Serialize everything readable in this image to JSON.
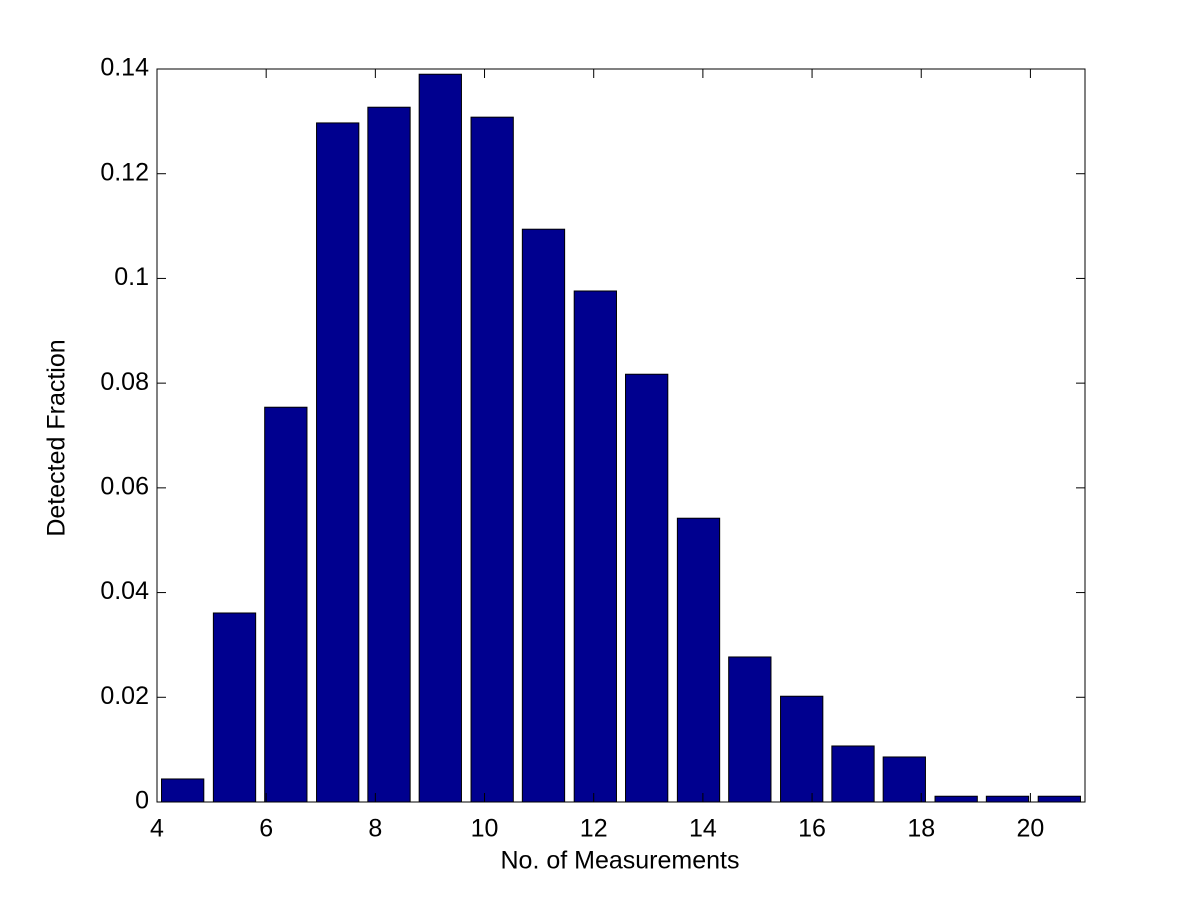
{
  "chart_data": {
    "type": "bar",
    "x_label": "No. of Measurements",
    "y_label": "Detected Fraction",
    "x": [
      4.47,
      5.42,
      6.36,
      7.31,
      8.25,
      9.19,
      10.14,
      11.08,
      12.03,
      12.97,
      13.92,
      14.86,
      15.81,
      16.75,
      17.69,
      18.64,
      19.58,
      20.53
    ],
    "values": [
      0.0044,
      0.0361,
      0.0754,
      0.1297,
      0.1327,
      0.139,
      0.1308,
      0.1094,
      0.0976,
      0.0817,
      0.0542,
      0.0277,
      0.0202,
      0.0107,
      0.0086,
      0.0011,
      0.0011,
      0.0011
    ],
    "color": "#00008f",
    "xlim": [
      4,
      21
    ],
    "xticks": [
      4,
      6,
      8,
      10,
      12,
      14,
      16,
      18,
      20
    ],
    "ylim": [
      0,
      0.14
    ],
    "yticks": [
      0,
      0.02,
      0.04,
      0.06,
      0.08,
      0.1,
      0.12,
      0.14
    ]
  }
}
